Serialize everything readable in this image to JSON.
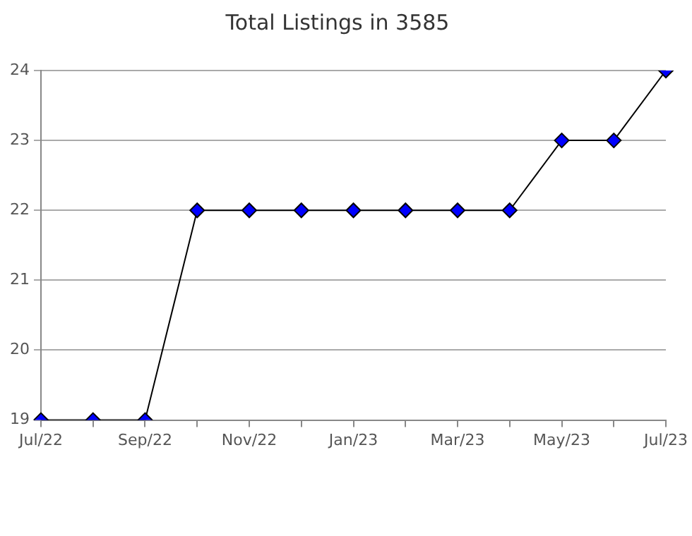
{
  "chart_data": {
    "type": "line",
    "title": "Total Listings in 3585",
    "categories": [
      "Jul/22",
      null,
      "Sep/22",
      null,
      "Nov/22",
      null,
      "Jan/23",
      null,
      "Mar/23",
      null,
      "May/23",
      null,
      "Jul/23"
    ],
    "series": [
      {
        "color": "#0000ff",
        "values": [
          19,
          19,
          19,
          22,
          22,
          22,
          22,
          22,
          22,
          22,
          23,
          23,
          24
        ]
      }
    ],
    "ylim": [
      19,
      24
    ],
    "yticks": [
      19,
      20,
      21,
      22,
      23,
      24
    ],
    "grid": "y",
    "legend": false,
    "marker": "diamond",
    "line_style": "solid"
  }
}
